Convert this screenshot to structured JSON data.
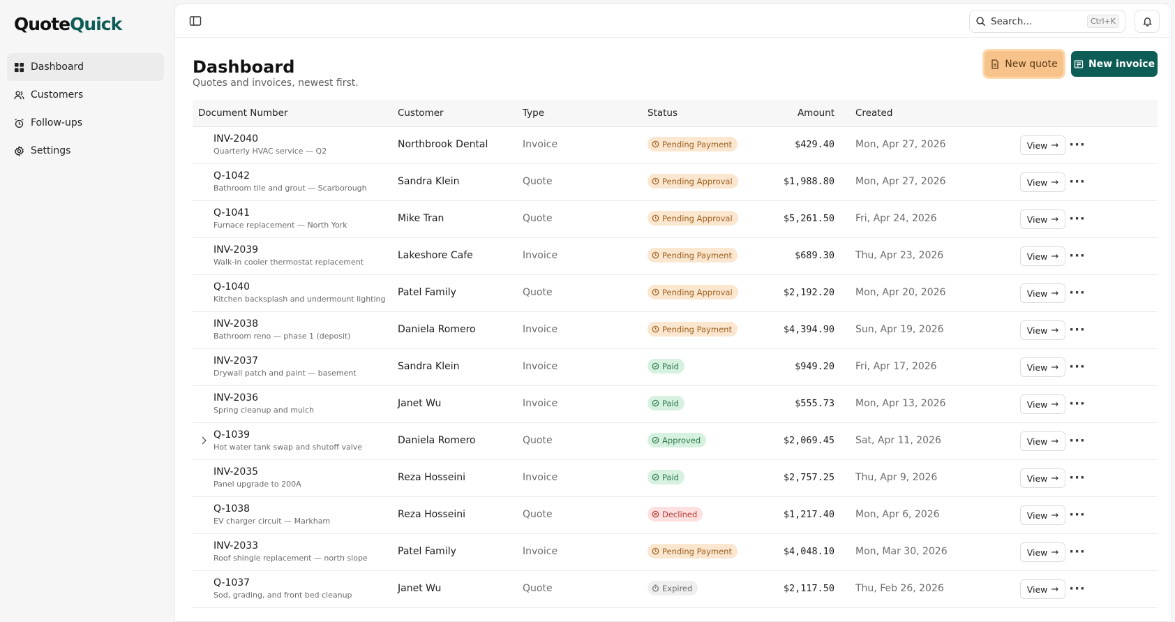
{
  "app": {
    "logo_part1": "Quote",
    "logo_part2": "Quick"
  },
  "sidebar": {
    "items": [
      {
        "label": "Dashboard",
        "icon": "dashboard-grid-icon",
        "active": true
      },
      {
        "label": "Customers",
        "icon": "users-icon",
        "active": false
      },
      {
        "label": "Follow-ups",
        "icon": "alarm-clock-icon",
        "active": false
      },
      {
        "label": "Settings",
        "icon": "gear-icon",
        "active": false
      }
    ]
  },
  "topbar": {
    "search_placeholder": "Search...",
    "search_shortcut": "Ctrl+K"
  },
  "header": {
    "title": "Dashboard",
    "subtitle": "Quotes and invoices, newest first.",
    "new_quote_label": "New quote",
    "new_invoice_label": "New invoice"
  },
  "table": {
    "columns": [
      "Document Number",
      "Customer",
      "Type",
      "Status",
      "Amount",
      "Created"
    ],
    "view_label": "View",
    "rows": [
      {
        "number": "INV-2040",
        "desc": "Quarterly HVAC service — Q2",
        "customer": "Northbrook Dental",
        "type": "Invoice",
        "status": "Pending Payment",
        "status_kind": "pending",
        "amount": "$429.40",
        "created": "Mon, Apr 27, 2026"
      },
      {
        "number": "Q-1042",
        "desc": "Bathroom tile and grout — Scarborough",
        "customer": "Sandra Klein",
        "type": "Quote",
        "status": "Pending Approval",
        "status_kind": "pending",
        "amount": "$1,988.80",
        "created": "Mon, Apr 27, 2026"
      },
      {
        "number": "Q-1041",
        "desc": "Furnace replacement — North York",
        "customer": "Mike Tran",
        "type": "Quote",
        "status": "Pending Approval",
        "status_kind": "pending",
        "amount": "$5,261.50",
        "created": "Fri, Apr 24, 2026"
      },
      {
        "number": "INV-2039",
        "desc": "Walk-in cooler thermostat replacement",
        "customer": "Lakeshore Cafe",
        "type": "Invoice",
        "status": "Pending Payment",
        "status_kind": "pending",
        "amount": "$689.30",
        "created": "Thu, Apr 23, 2026"
      },
      {
        "number": "Q-1040",
        "desc": "Kitchen backsplash and undermount lighting",
        "customer": "Patel Family",
        "type": "Quote",
        "status": "Pending Approval",
        "status_kind": "pending",
        "amount": "$2,192.20",
        "created": "Mon, Apr 20, 2026"
      },
      {
        "number": "INV-2038",
        "desc": "Bathroom reno — phase 1 (deposit)",
        "customer": "Daniela Romero",
        "type": "Invoice",
        "status": "Pending Payment",
        "status_kind": "pending",
        "amount": "$4,394.90",
        "created": "Sun, Apr 19, 2026"
      },
      {
        "number": "INV-2037",
        "desc": "Drywall patch and paint — basement",
        "customer": "Sandra Klein",
        "type": "Invoice",
        "status": "Paid",
        "status_kind": "paid",
        "amount": "$949.20",
        "created": "Fri, Apr 17, 2026"
      },
      {
        "number": "INV-2036",
        "desc": "Spring cleanup and mulch",
        "customer": "Janet Wu",
        "type": "Invoice",
        "status": "Paid",
        "status_kind": "paid",
        "amount": "$555.73",
        "created": "Mon, Apr 13, 2026"
      },
      {
        "number": "Q-1039",
        "desc": "Hot water tank swap and shutoff valve",
        "customer": "Daniela Romero",
        "type": "Quote",
        "status": "Approved",
        "status_kind": "paid",
        "amount": "$2,069.45",
        "created": "Sat, Apr 11, 2026",
        "expandable": true
      },
      {
        "number": "INV-2035",
        "desc": "Panel upgrade to 200A",
        "customer": "Reza Hosseini",
        "type": "Invoice",
        "status": "Paid",
        "status_kind": "paid",
        "amount": "$2,757.25",
        "created": "Thu, Apr 9, 2026"
      },
      {
        "number": "Q-1038",
        "desc": "EV charger circuit — Markham",
        "customer": "Reza Hosseini",
        "type": "Quote",
        "status": "Declined",
        "status_kind": "declined",
        "amount": "$1,217.40",
        "created": "Mon, Apr 6, 2026"
      },
      {
        "number": "INV-2033",
        "desc": "Roof shingle replacement — north slope",
        "customer": "Patel Family",
        "type": "Invoice",
        "status": "Pending Payment",
        "status_kind": "pending",
        "amount": "$4,048.10",
        "created": "Mon, Mar 30, 2026"
      },
      {
        "number": "Q-1037",
        "desc": "Sod, grading, and front bed cleanup",
        "customer": "Janet Wu",
        "type": "Quote",
        "status": "Expired",
        "status_kind": "expired",
        "amount": "$2,117.50",
        "created": "Thu, Feb 26, 2026"
      }
    ]
  },
  "colors": {
    "brand": "#0d5d56",
    "accent_quote": "#f7c38a"
  }
}
